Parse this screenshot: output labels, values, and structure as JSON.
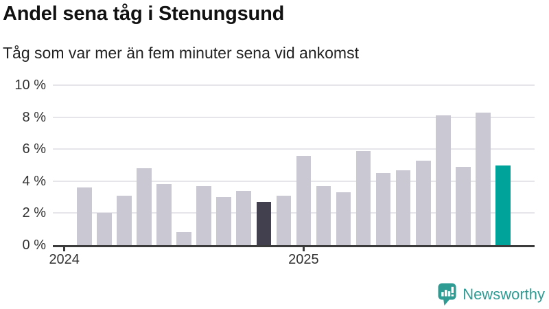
{
  "chart_data": {
    "type": "bar",
    "title": "Andel sena tåg i Stenungsund",
    "subtitle": "Tåg som var mer än fem minuter sena vid ankomst",
    "categories": [
      "2024-02",
      "2024-03",
      "2024-04",
      "2024-05",
      "2024-06",
      "2024-07",
      "2024-08",
      "2024-09",
      "2024-10",
      "2024-11",
      "2024-12",
      "2025-01",
      "2025-02",
      "2025-03",
      "2025-04",
      "2025-05",
      "2025-06",
      "2025-07",
      "2025-08",
      "2025-09",
      "2025-10",
      "2025-11"
    ],
    "values": [
      3.6,
      2.0,
      3.1,
      4.8,
      3.8,
      0.8,
      3.7,
      3.0,
      3.4,
      2.7,
      3.1,
      5.6,
      3.7,
      3.3,
      5.9,
      4.5,
      4.7,
      5.3,
      8.1,
      4.9,
      8.3,
      5.0
    ],
    "unit": "%",
    "bar_roles": [
      "default",
      "default",
      "default",
      "default",
      "default",
      "default",
      "default",
      "default",
      "default",
      "dark",
      "default",
      "default",
      "default",
      "default",
      "default",
      "default",
      "default",
      "default",
      "default",
      "default",
      "default",
      "teal"
    ],
    "colors": {
      "default": "#c9c8d3",
      "dark": "#423f4e",
      "teal": "#00a39a"
    },
    "y_ticks": [
      0,
      2,
      4,
      6,
      8,
      10
    ],
    "y_tick_suffix": " %",
    "ylim": [
      0,
      10
    ],
    "x_ticks": [
      {
        "label": "2024",
        "month": "2024-01"
      },
      {
        "label": "2025",
        "month": "2025-01"
      }
    ],
    "grid": true,
    "legend": "none"
  },
  "footer": {
    "brand": "Newsworthy",
    "logo_icon": "newsworthy-speech-bubble-bar-chart-icon",
    "brand_color": "#2f9c94"
  }
}
